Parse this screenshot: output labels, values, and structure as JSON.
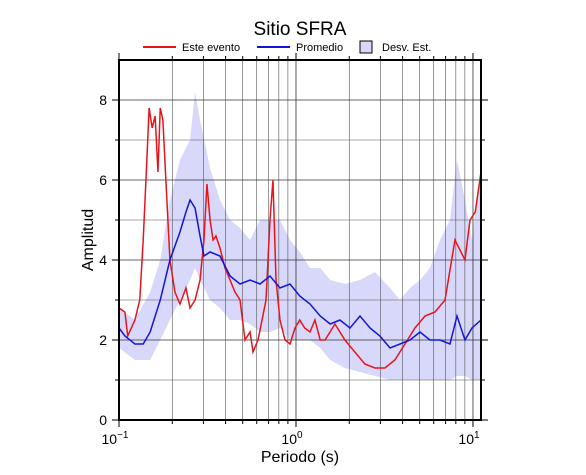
{
  "chart_data": {
    "type": "line",
    "title": "Sitio SFRA",
    "x_label": "Periodo (s)",
    "y_label": "Amplitud",
    "x_scale": "log",
    "xlim": [
      0.1,
      11.1
    ],
    "ylim": [
      0,
      9
    ],
    "xticks": [
      {
        "value": 0.1,
        "label": "10",
        "exponent": "−1"
      },
      {
        "value": 1,
        "label": "10",
        "exponent": "0"
      },
      {
        "value": 10,
        "label": "10",
        "exponent": "1"
      }
    ],
    "xminor": [
      0.2,
      0.3,
      0.4,
      0.5,
      0.6,
      0.7,
      0.8,
      0.9,
      2,
      3,
      4,
      5,
      6,
      7,
      8,
      9
    ],
    "yticks": [
      0,
      2,
      4,
      6,
      8
    ],
    "yminor": [
      1,
      3,
      5,
      7
    ],
    "grid": true,
    "legend": "top",
    "series": [
      {
        "name": "Este evento",
        "color": "#e8141c",
        "x": [
          0.1,
          0.108,
          0.112,
          0.123,
          0.131,
          0.137,
          0.142,
          0.148,
          0.154,
          0.16,
          0.166,
          0.171,
          0.177,
          0.184,
          0.194,
          0.207,
          0.221,
          0.239,
          0.252,
          0.269,
          0.287,
          0.302,
          0.314,
          0.327,
          0.34,
          0.353,
          0.372,
          0.397,
          0.424,
          0.452,
          0.483,
          0.515,
          0.55,
          0.572,
          0.61,
          0.643,
          0.677,
          0.713,
          0.741,
          0.771,
          0.812,
          0.867,
          0.925,
          0.987,
          1.05,
          1.12,
          1.2,
          1.28,
          1.37,
          1.46,
          1.66,
          1.89,
          2.15,
          2.45,
          2.79,
          3.18,
          3.62,
          4.13,
          4.7,
          5.36,
          6.1,
          6.95,
          7.91,
          9.01,
          9.62,
          10.3,
          11.1
        ],
        "values": [
          2.8,
          2.7,
          2.1,
          2.5,
          3.0,
          4.5,
          6.0,
          7.8,
          7.3,
          7.6,
          6.2,
          7.8,
          7.5,
          6.0,
          4.0,
          3.2,
          2.9,
          3.3,
          2.8,
          3.0,
          3.5,
          4.5,
          5.9,
          5.0,
          4.5,
          4.6,
          4.3,
          3.8,
          3.5,
          3.2,
          3.0,
          2.0,
          2.2,
          1.7,
          2.0,
          2.5,
          3.0,
          5.0,
          6.0,
          3.5,
          2.5,
          2.0,
          1.9,
          2.3,
          2.5,
          2.3,
          2.2,
          2.5,
          2.0,
          2.0,
          2.4,
          2.0,
          1.7,
          1.4,
          1.3,
          1.3,
          1.5,
          1.9,
          2.3,
          2.6,
          2.7,
          3.0,
          4.5,
          4.0,
          5.0,
          5.2,
          6.2
        ]
      },
      {
        "name": "Promedio",
        "color": "#1414d8",
        "x": [
          0.1,
          0.108,
          0.123,
          0.137,
          0.15,
          0.171,
          0.194,
          0.221,
          0.239,
          0.252,
          0.269,
          0.287,
          0.302,
          0.327,
          0.372,
          0.424,
          0.483,
          0.55,
          0.626,
          0.713,
          0.812,
          0.925,
          1.05,
          1.2,
          1.37,
          1.56,
          1.77,
          2.02,
          2.3,
          2.62,
          2.98,
          3.4,
          3.87,
          4.41,
          5.02,
          5.71,
          6.51,
          7.41,
          8.12,
          9.01,
          9.87,
          11.1
        ],
        "values": [
          2.3,
          2.1,
          1.9,
          1.9,
          2.2,
          3.0,
          4.0,
          4.7,
          5.2,
          5.5,
          5.3,
          4.6,
          4.1,
          4.2,
          4.1,
          3.6,
          3.4,
          3.5,
          3.4,
          3.6,
          3.3,
          3.4,
          3.1,
          2.9,
          2.6,
          2.4,
          2.5,
          2.3,
          2.6,
          2.3,
          2.1,
          1.8,
          1.9,
          2.0,
          2.2,
          2.0,
          2.0,
          1.9,
          2.6,
          2.0,
          2.3,
          2.5
        ]
      },
      {
        "name": "Desv. Est.",
        "color": "#d8d8fa",
        "kind": "band",
        "x": [
          0.1,
          0.123,
          0.15,
          0.171,
          0.194,
          0.221,
          0.252,
          0.269,
          0.287,
          0.327,
          0.372,
          0.424,
          0.483,
          0.55,
          0.626,
          0.713,
          0.812,
          0.925,
          1.05,
          1.2,
          1.37,
          1.56,
          1.89,
          2.3,
          2.79,
          3.4,
          3.87,
          4.41,
          5.02,
          5.71,
          6.51,
          7.41,
          8.12,
          9.01,
          9.87,
          11.1
        ],
        "lower": [
          1.8,
          1.5,
          1.5,
          2.0,
          2.5,
          3.0,
          3.5,
          3.8,
          3.5,
          3.0,
          2.8,
          2.5,
          2.5,
          2.4,
          2.2,
          2.2,
          2.3,
          2.0,
          2.0,
          2.0,
          1.8,
          1.5,
          1.3,
          1.2,
          1.1,
          1.0,
          1.0,
          1.0,
          1.0,
          1.0,
          1.0,
          1.0,
          1.1,
          1.1,
          1.0,
          1.0
        ],
        "upper": [
          2.8,
          2.5,
          3.2,
          4.0,
          5.5,
          6.5,
          7.0,
          8.2,
          7.5,
          6.3,
          5.5,
          5.0,
          4.8,
          4.5,
          5.0,
          5.0,
          5.0,
          4.5,
          4.2,
          3.8,
          3.8,
          3.5,
          3.4,
          3.5,
          3.7,
          3.3,
          3.0,
          3.3,
          3.5,
          3.8,
          4.5,
          5.0,
          6.5,
          5.5,
          4.5,
          6.3
        ]
      }
    ]
  }
}
